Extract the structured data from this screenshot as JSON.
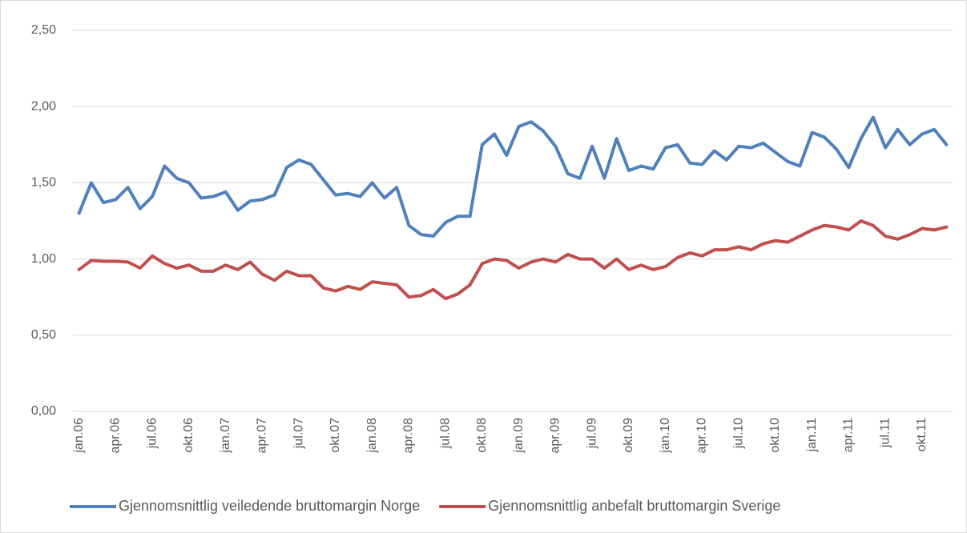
{
  "chart_data": {
    "type": "line",
    "categories": [
      "jan.06",
      null,
      null,
      "apr.06",
      null,
      null,
      "jul.06",
      null,
      null,
      "okt.06",
      null,
      null,
      "jan.07",
      null,
      null,
      "apr.07",
      null,
      null,
      "jul.07",
      null,
      null,
      "okt.07",
      null,
      null,
      "jan.08",
      null,
      null,
      "apr.08",
      null,
      null,
      "jul.08",
      null,
      null,
      "okt.08",
      null,
      null,
      "jan.09",
      null,
      null,
      "apr.09",
      null,
      null,
      "jul.09",
      null,
      null,
      "okt.09",
      null,
      null,
      "jan.10",
      null,
      null,
      "apr.10",
      null,
      null,
      "jul.10",
      null,
      null,
      "okt.10",
      null,
      null,
      "jan.11",
      null,
      null,
      "apr.11",
      null,
      null,
      "jul.11",
      null,
      null,
      "okt.11",
      null,
      null
    ],
    "series": [
      {
        "name": "Gjennomsnittlig veiledende bruttomargin Norge",
        "color": "#4f81bd",
        "values": [
          1.3,
          1.5,
          1.37,
          1.39,
          1.47,
          1.33,
          1.41,
          1.61,
          1.53,
          1.5,
          1.4,
          1.41,
          1.44,
          1.32,
          1.38,
          1.39,
          1.42,
          1.6,
          1.65,
          1.62,
          1.52,
          1.42,
          1.43,
          1.41,
          1.5,
          1.4,
          1.47,
          1.22,
          1.16,
          1.15,
          1.24,
          1.28,
          1.28,
          1.75,
          1.82,
          1.68,
          1.87,
          1.9,
          1.84,
          1.74,
          1.56,
          1.53,
          1.74,
          1.53,
          1.79,
          1.58,
          1.61,
          1.59,
          1.73,
          1.75,
          1.63,
          1.62,
          1.71,
          1.65,
          1.74,
          1.73,
          1.76,
          1.7,
          1.64,
          1.61,
          1.83,
          1.8,
          1.72,
          1.6,
          1.79,
          1.93,
          1.73,
          1.85,
          1.75,
          1.82,
          1.85,
          1.75
        ]
      },
      {
        "name": "Gjennomsnittlig anbefalt bruttomargin Sverige",
        "color": "#c0504d",
        "values": [
          0.93,
          0.99,
          0.985,
          0.985,
          0.98,
          0.94,
          1.02,
          0.97,
          0.94,
          0.96,
          0.92,
          0.92,
          0.96,
          0.93,
          0.98,
          0.9,
          0.86,
          0.92,
          0.89,
          0.89,
          0.81,
          0.79,
          0.82,
          0.8,
          0.85,
          0.84,
          0.83,
          0.75,
          0.76,
          0.8,
          0.74,
          0.77,
          0.83,
          0.97,
          1.0,
          0.99,
          0.94,
          0.98,
          1.0,
          0.98,
          1.03,
          1.0,
          1.0,
          0.94,
          1.0,
          0.93,
          0.96,
          0.93,
          0.95,
          1.01,
          1.04,
          1.02,
          1.06,
          1.06,
          1.08,
          1.06,
          1.1,
          1.12,
          1.11,
          1.15,
          1.19,
          1.22,
          1.21,
          1.19,
          1.25,
          1.22,
          1.15,
          1.13,
          1.16,
          1.2,
          1.19,
          1.21
        ]
      }
    ],
    "ylim": [
      0,
      2.5
    ],
    "yticks": [
      {
        "value": 0,
        "label": "0,00"
      },
      {
        "value": 0.5,
        "label": "0,50"
      },
      {
        "value": 1,
        "label": "1,00"
      },
      {
        "value": 1.5,
        "label": "1,50"
      },
      {
        "value": 2,
        "label": "2,00"
      },
      {
        "value": 2.5,
        "label": "2,50"
      }
    ],
    "grid": true,
    "legend": "bottom"
  }
}
